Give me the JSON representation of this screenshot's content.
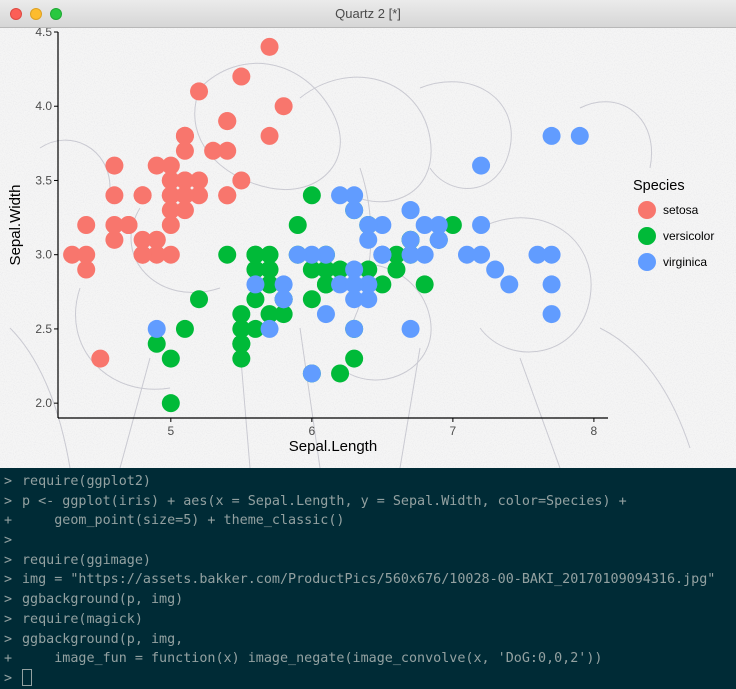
{
  "window": {
    "title": "Quartz 2 [*]",
    "buttons": [
      "close",
      "minimize",
      "zoom"
    ]
  },
  "chart_data": {
    "type": "scatter",
    "title": "",
    "xlabel": "Sepal.Length",
    "ylabel": "Sepal.Width",
    "xlim": [
      4.2,
      8.1
    ],
    "ylim": [
      1.9,
      4.5
    ],
    "xticks": [
      5,
      6,
      7,
      8
    ],
    "yticks": [
      2.0,
      2.5,
      3.0,
      3.5,
      4.0,
      4.5
    ],
    "xtick_labels": [
      "5",
      "6",
      "7",
      "8"
    ],
    "ytick_labels": [
      "2.0",
      "2.5",
      "3.0",
      "3.5",
      "4.0",
      "4.5"
    ],
    "legend_title": "Species",
    "legend_position": "right",
    "grid": false,
    "theme": "classic",
    "background": "edge-filtered flower photograph",
    "series": [
      {
        "name": "setosa",
        "color": "#F8766D",
        "points": [
          [
            5.1,
            3.5
          ],
          [
            4.9,
            3.0
          ],
          [
            4.7,
            3.2
          ],
          [
            4.6,
            3.1
          ],
          [
            5.0,
            3.6
          ],
          [
            5.4,
            3.9
          ],
          [
            4.6,
            3.4
          ],
          [
            5.0,
            3.4
          ],
          [
            4.4,
            2.9
          ],
          [
            4.9,
            3.1
          ],
          [
            5.4,
            3.7
          ],
          [
            4.8,
            3.4
          ],
          [
            4.8,
            3.0
          ],
          [
            4.3,
            3.0
          ],
          [
            5.8,
            4.0
          ],
          [
            5.7,
            4.4
          ],
          [
            5.4,
            3.9
          ],
          [
            5.1,
            3.5
          ],
          [
            5.7,
            3.8
          ],
          [
            5.1,
            3.8
          ],
          [
            5.4,
            3.4
          ],
          [
            5.1,
            3.7
          ],
          [
            4.6,
            3.6
          ],
          [
            5.1,
            3.3
          ],
          [
            4.8,
            3.4
          ],
          [
            5.0,
            3.0
          ],
          [
            5.0,
            3.4
          ],
          [
            5.2,
            3.5
          ],
          [
            5.2,
            3.4
          ],
          [
            4.7,
            3.2
          ],
          [
            4.8,
            3.1
          ],
          [
            5.4,
            3.4
          ],
          [
            5.2,
            4.1
          ],
          [
            5.5,
            4.2
          ],
          [
            4.9,
            3.1
          ],
          [
            5.0,
            3.2
          ],
          [
            5.5,
            3.5
          ],
          [
            4.9,
            3.6
          ],
          [
            4.4,
            3.0
          ],
          [
            5.1,
            3.4
          ],
          [
            5.0,
            3.5
          ],
          [
            4.5,
            2.3
          ],
          [
            4.4,
            3.2
          ],
          [
            5.0,
            3.5
          ],
          [
            5.1,
            3.8
          ],
          [
            4.8,
            3.0
          ],
          [
            5.1,
            3.8
          ],
          [
            4.6,
            3.2
          ],
          [
            5.3,
            3.7
          ],
          [
            5.0,
            3.3
          ]
        ]
      },
      {
        "name": "versicolor",
        "color": "#00BA38",
        "points": [
          [
            7.0,
            3.2
          ],
          [
            6.4,
            3.2
          ],
          [
            6.9,
            3.1
          ],
          [
            5.5,
            2.3
          ],
          [
            6.5,
            2.8
          ],
          [
            5.7,
            2.8
          ],
          [
            6.3,
            3.3
          ],
          [
            4.9,
            2.4
          ],
          [
            6.6,
            2.9
          ],
          [
            5.2,
            2.7
          ],
          [
            5.0,
            2.0
          ],
          [
            5.9,
            3.0
          ],
          [
            6.0,
            2.2
          ],
          [
            6.1,
            2.9
          ],
          [
            5.6,
            2.9
          ],
          [
            6.7,
            3.1
          ],
          [
            5.6,
            3.0
          ],
          [
            5.8,
            2.7
          ],
          [
            6.2,
            2.2
          ],
          [
            5.6,
            2.5
          ],
          [
            5.9,
            3.2
          ],
          [
            6.1,
            2.8
          ],
          [
            6.3,
            2.5
          ],
          [
            6.1,
            2.8
          ],
          [
            6.4,
            2.9
          ],
          [
            6.6,
            3.0
          ],
          [
            6.8,
            2.8
          ],
          [
            6.7,
            3.0
          ],
          [
            6.0,
            2.9
          ],
          [
            5.7,
            2.6
          ],
          [
            5.5,
            2.4
          ],
          [
            5.5,
            2.4
          ],
          [
            5.8,
            2.7
          ],
          [
            6.0,
            2.7
          ],
          [
            5.4,
            3.0
          ],
          [
            6.0,
            3.4
          ],
          [
            6.7,
            3.1
          ],
          [
            6.3,
            2.3
          ],
          [
            5.6,
            3.0
          ],
          [
            5.5,
            2.5
          ],
          [
            5.5,
            2.6
          ],
          [
            6.1,
            3.0
          ],
          [
            5.8,
            2.6
          ],
          [
            5.0,
            2.3
          ],
          [
            5.6,
            2.7
          ],
          [
            5.7,
            3.0
          ],
          [
            5.7,
            2.9
          ],
          [
            6.2,
            2.9
          ],
          [
            5.1,
            2.5
          ],
          [
            5.7,
            2.8
          ]
        ]
      },
      {
        "name": "virginica",
        "color": "#619CFF",
        "points": [
          [
            6.3,
            3.3
          ],
          [
            5.8,
            2.7
          ],
          [
            7.1,
            3.0
          ],
          [
            6.3,
            2.9
          ],
          [
            6.5,
            3.0
          ],
          [
            7.6,
            3.0
          ],
          [
            4.9,
            2.5
          ],
          [
            7.3,
            2.9
          ],
          [
            6.7,
            2.5
          ],
          [
            7.2,
            3.6
          ],
          [
            6.5,
            3.2
          ],
          [
            6.4,
            2.7
          ],
          [
            6.8,
            3.0
          ],
          [
            5.7,
            2.5
          ],
          [
            5.8,
            2.8
          ],
          [
            6.4,
            3.2
          ],
          [
            6.5,
            3.0
          ],
          [
            7.7,
            3.8
          ],
          [
            7.7,
            2.6
          ],
          [
            6.0,
            2.2
          ],
          [
            6.9,
            3.2
          ],
          [
            5.6,
            2.8
          ],
          [
            7.7,
            2.8
          ],
          [
            6.3,
            2.7
          ],
          [
            6.7,
            3.3
          ],
          [
            7.2,
            3.2
          ],
          [
            6.2,
            2.8
          ],
          [
            6.1,
            3.0
          ],
          [
            6.4,
            2.8
          ],
          [
            7.2,
            3.0
          ],
          [
            7.4,
            2.8
          ],
          [
            7.9,
            3.8
          ],
          [
            6.4,
            2.8
          ],
          [
            6.3,
            2.8
          ],
          [
            6.1,
            2.6
          ],
          [
            7.7,
            3.0
          ],
          [
            6.3,
            3.4
          ],
          [
            6.4,
            3.1
          ],
          [
            6.0,
            3.0
          ],
          [
            6.9,
            3.1
          ],
          [
            6.7,
            3.1
          ],
          [
            6.9,
            3.1
          ],
          [
            5.8,
            2.7
          ],
          [
            6.8,
            3.2
          ],
          [
            6.7,
            3.3
          ],
          [
            6.7,
            3.0
          ],
          [
            6.3,
            2.5
          ],
          [
            6.5,
            3.0
          ],
          [
            6.2,
            3.4
          ],
          [
            5.9,
            3.0
          ]
        ]
      }
    ]
  },
  "console": {
    "prompt": ">",
    "continuation": "+",
    "lines": [
      {
        "p": ">",
        "text": "require(ggplot2)"
      },
      {
        "p": ">",
        "text": "p <- ggplot(iris) + aes(x = Sepal.Length, y = Sepal.Width, color=Species) +"
      },
      {
        "p": "+",
        "text": "    geom_point(size=5) + theme_classic()"
      },
      {
        "p": ">",
        "text": ""
      },
      {
        "p": ">",
        "text": "require(ggimage)"
      },
      {
        "p": ">",
        "text": "img = \"https://assets.bakker.com/ProductPics/560x676/10028-00-BAKI_20170109094316.jpg\""
      },
      {
        "p": ">",
        "text": "ggbackground(p, img)"
      },
      {
        "p": ">",
        "text": "require(magick)"
      },
      {
        "p": ">",
        "text": "ggbackground(p, img,"
      },
      {
        "p": "+",
        "text": "    image_fun = function(x) image_negate(image_convolve(x, 'DoG:0,0,2'))"
      }
    ]
  }
}
